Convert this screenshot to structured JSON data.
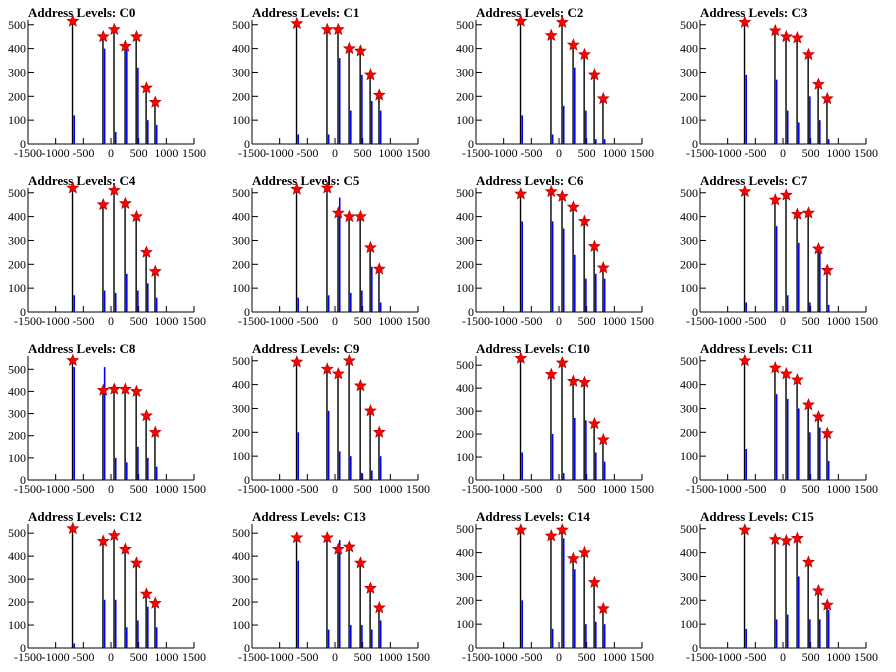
{
  "chart_data": [
    {
      "type": "bar",
      "title": "Address Levels: C0",
      "xlim": [
        -1500,
        1500
      ],
      "ylim": [
        0,
        520
      ],
      "xticks": [
        -1500,
        -1000,
        -500,
        0,
        500,
        1000,
        1500
      ],
      "yticks": [
        0,
        100,
        200,
        300,
        400,
        500
      ],
      "xticklabels": [
        "-1500",
        "-1000",
        "-500",
        "0",
        "500",
        "1000",
        "1500"
      ],
      "yticklabels": [
        "0",
        "100",
        "200",
        "300",
        "400",
        "500"
      ],
      "peaks_x": [
        -690,
        -140,
        60,
        260,
        460,
        640,
        800
      ],
      "peaks_y": [
        515,
        450,
        480,
        410,
        450,
        235,
        175
      ],
      "secondary_y": [
        120,
        400,
        50,
        410,
        320,
        100,
        80
      ]
    },
    {
      "type": "bar",
      "title": "Address Levels: C1",
      "xlim": [
        -1500,
        1500
      ],
      "ylim": [
        0,
        520
      ],
      "xticks": [
        -1500,
        -1000,
        -500,
        0,
        500,
        1000,
        1500
      ],
      "yticks": [
        0,
        100,
        200,
        300,
        400,
        500
      ],
      "xticklabels": [
        "-1500",
        "-1000",
        "-500",
        "0",
        "500",
        "1000",
        "1500"
      ],
      "yticklabels": [
        "0",
        "100",
        "200",
        "300",
        "400",
        "500"
      ],
      "peaks_x": [
        -690,
        -140,
        60,
        260,
        460,
        640,
        800
      ],
      "peaks_y": [
        505,
        480,
        480,
        400,
        390,
        290,
        205
      ],
      "secondary_y": [
        40,
        40,
        360,
        140,
        290,
        180,
        140
      ]
    },
    {
      "type": "bar",
      "title": "Address Levels: C2",
      "xlim": [
        -1500,
        1500
      ],
      "ylim": [
        0,
        520
      ],
      "xticks": [
        -1500,
        -1000,
        -500,
        0,
        500,
        1000,
        1500
      ],
      "yticks": [
        0,
        100,
        200,
        300,
        400,
        500
      ],
      "xticklabels": [
        "-1500",
        "-1000",
        "-500",
        "0",
        "500",
        "1000",
        "1500"
      ],
      "yticklabels": [
        "0",
        "100",
        "200",
        "300",
        "400",
        "500"
      ],
      "peaks_x": [
        -690,
        -140,
        60,
        260,
        460,
        640,
        800
      ],
      "peaks_y": [
        515,
        455,
        510,
        415,
        375,
        290,
        190
      ],
      "secondary_y": [
        120,
        40,
        160,
        320,
        140,
        20,
        20
      ]
    },
    {
      "type": "bar",
      "title": "Address Levels: C3",
      "xlim": [
        -1500,
        1500
      ],
      "ylim": [
        0,
        520
      ],
      "xticks": [
        -1500,
        -1000,
        -500,
        0,
        500,
        1000,
        1500
      ],
      "yticks": [
        0,
        100,
        200,
        300,
        400,
        500
      ],
      "xticklabels": [
        "-1500",
        "-1000",
        "-500",
        "0",
        "500",
        "1000",
        "1500"
      ],
      "yticklabels": [
        "0",
        "100",
        "200",
        "300",
        "400",
        "500"
      ],
      "peaks_x": [
        -690,
        -140,
        60,
        260,
        460,
        640,
        800
      ],
      "peaks_y": [
        510,
        475,
        450,
        445,
        375,
        250,
        190
      ],
      "secondary_y": [
        290,
        270,
        140,
        90,
        200,
        100,
        20
      ]
    },
    {
      "type": "bar",
      "title": "Address Levels: C4",
      "xlim": [
        -1500,
        1500
      ],
      "ylim": [
        0,
        520
      ],
      "xticks": [
        -1500,
        -1000,
        -500,
        0,
        500,
        1000,
        1500
      ],
      "yticks": [
        0,
        100,
        200,
        300,
        400,
        500
      ],
      "xticklabels": [
        "-1500",
        "-1000",
        "-500",
        "0",
        "500",
        "1000",
        "1500"
      ],
      "yticklabels": [
        "0",
        "100",
        "200",
        "300",
        "400",
        "500"
      ],
      "peaks_x": [
        -690,
        -140,
        60,
        260,
        460,
        640,
        800
      ],
      "peaks_y": [
        520,
        450,
        510,
        455,
        400,
        250,
        170
      ],
      "secondary_y": [
        70,
        90,
        80,
        160,
        90,
        120,
        60
      ]
    },
    {
      "type": "bar",
      "title": "Address Levels: C5",
      "xlim": [
        -1500,
        1500
      ],
      "ylim": [
        0,
        520
      ],
      "xticks": [
        -1500,
        -1000,
        -500,
        0,
        500,
        1000,
        1500
      ],
      "yticks": [
        0,
        100,
        200,
        300,
        400,
        500
      ],
      "xticklabels": [
        "-1500",
        "-1000",
        "-500",
        "0",
        "500",
        "1000",
        "1500"
      ],
      "yticklabels": [
        "0",
        "100",
        "200",
        "300",
        "400",
        "500"
      ],
      "peaks_x": [
        -690,
        -140,
        60,
        260,
        460,
        640,
        800
      ],
      "peaks_y": [
        515,
        520,
        415,
        400,
        400,
        270,
        180
      ],
      "secondary_y": [
        60,
        70,
        480,
        80,
        90,
        190,
        40
      ]
    },
    {
      "type": "bar",
      "title": "Address Levels: C6",
      "xlim": [
        -1500,
        1500
      ],
      "ylim": [
        0,
        520
      ],
      "xticks": [
        -1500,
        -1000,
        -500,
        0,
        500,
        1000,
        1500
      ],
      "yticks": [
        0,
        100,
        200,
        300,
        400,
        500
      ],
      "xticklabels": [
        "-1500",
        "-1000",
        "-500",
        "0",
        "500",
        "1000",
        "1500"
      ],
      "yticklabels": [
        "0",
        "100",
        "200",
        "300",
        "400",
        "500"
      ],
      "peaks_x": [
        -690,
        -140,
        60,
        260,
        460,
        640,
        800
      ],
      "peaks_y": [
        495,
        505,
        485,
        440,
        380,
        275,
        185
      ],
      "secondary_y": [
        380,
        380,
        350,
        240,
        140,
        160,
        140
      ]
    },
    {
      "type": "bar",
      "title": "Address Levels: C7",
      "xlim": [
        -1500,
        1500
      ],
      "ylim": [
        0,
        520
      ],
      "xticks": [
        -1500,
        -1000,
        -500,
        0,
        500,
        1000,
        1500
      ],
      "yticks": [
        0,
        100,
        200,
        300,
        400,
        500
      ],
      "xticklabels": [
        "-1500",
        "-1000",
        "-500",
        "0",
        "500",
        "1000",
        "1500"
      ],
      "yticklabels": [
        "0",
        "100",
        "200",
        "300",
        "400",
        "500"
      ],
      "peaks_x": [
        -690,
        -140,
        60,
        260,
        460,
        640,
        800
      ],
      "peaks_y": [
        505,
        470,
        490,
        410,
        415,
        265,
        175
      ],
      "secondary_y": [
        40,
        360,
        70,
        290,
        40,
        250,
        30
      ]
    },
    {
      "type": "bar",
      "title": "Address Levels: C8",
      "xlim": [
        -1500,
        1500
      ],
      "ylim": [
        0,
        560
      ],
      "xticks": [
        -1500,
        -1000,
        -500,
        0,
        500,
        1000,
        1500
      ],
      "yticks": [
        0,
        100,
        200,
        300,
        400,
        500
      ],
      "xticklabels": [
        "-1500",
        "-1000",
        "-500",
        "0",
        "500",
        "1000",
        "1500"
      ],
      "yticklabels": [
        "0",
        "100",
        "200",
        "300",
        "400",
        "500"
      ],
      "peaks_x": [
        -690,
        -140,
        60,
        260,
        460,
        640,
        800
      ],
      "peaks_y": [
        540,
        405,
        410,
        410,
        400,
        290,
        215
      ],
      "secondary_y": [
        510,
        510,
        100,
        80,
        150,
        100,
        60
      ]
    },
    {
      "type": "bar",
      "title": "Address Levels: C9",
      "xlim": [
        -1500,
        1500
      ],
      "ylim": [
        0,
        520
      ],
      "xticks": [
        -1500,
        -1000,
        -500,
        0,
        500,
        1000,
        1500
      ],
      "yticks": [
        0,
        100,
        200,
        300,
        400,
        500
      ],
      "xticklabels": [
        "-1500",
        "-1000",
        "-500",
        "0",
        "500",
        "1000",
        "1500"
      ],
      "yticklabels": [
        "0",
        "100",
        "200",
        "300",
        "400",
        "500"
      ],
      "peaks_x": [
        -690,
        -140,
        60,
        260,
        460,
        640,
        800
      ],
      "peaks_y": [
        495,
        465,
        445,
        500,
        395,
        290,
        200
      ],
      "secondary_y": [
        200,
        290,
        120,
        100,
        30,
        40,
        100
      ]
    },
    {
      "type": "bar",
      "title": "Address Levels: C10",
      "xlim": [
        -1500,
        1500
      ],
      "ylim": [
        0,
        540
      ],
      "xticks": [
        -1500,
        -1000,
        -500,
        0,
        500,
        1000,
        1500
      ],
      "yticks": [
        0,
        100,
        200,
        300,
        400,
        500
      ],
      "xticklabels": [
        "-1500",
        "-1000",
        "-500",
        "0",
        "500",
        "1000",
        "1500"
      ],
      "yticklabels": [
        "0",
        "100",
        "200",
        "300",
        "400",
        "500"
      ],
      "peaks_x": [
        -690,
        -140,
        60,
        260,
        460,
        640,
        800
      ],
      "peaks_y": [
        530,
        460,
        510,
        430,
        425,
        245,
        175
      ],
      "secondary_y": [
        120,
        200,
        30,
        270,
        260,
        120,
        80
      ]
    },
    {
      "type": "bar",
      "title": "Address Levels: C11",
      "xlim": [
        -1500,
        1500
      ],
      "ylim": [
        0,
        520
      ],
      "xticks": [
        -1500,
        -1000,
        -500,
        0,
        500,
        1000,
        1500
      ],
      "yticks": [
        0,
        100,
        200,
        300,
        400,
        500
      ],
      "xticklabels": [
        "-1500",
        "-1000",
        "-500",
        "0",
        "500",
        "1000",
        "1500"
      ],
      "yticklabels": [
        "0",
        "100",
        "200",
        "300",
        "400",
        "500"
      ],
      "peaks_x": [
        -690,
        -140,
        60,
        260,
        460,
        640,
        800
      ],
      "peaks_y": [
        500,
        470,
        445,
        420,
        315,
        265,
        195
      ],
      "secondary_y": [
        130,
        360,
        340,
        300,
        200,
        220,
        80
      ]
    },
    {
      "type": "bar",
      "title": "Address Levels: C12",
      "xlim": [
        -1500,
        1500
      ],
      "ylim": [
        0,
        540
      ],
      "xticks": [
        -1500,
        -1000,
        -500,
        0,
        500,
        1000,
        1500
      ],
      "yticks": [
        0,
        100,
        200,
        300,
        400,
        500
      ],
      "xticklabels": [
        "-1500",
        "-1000",
        "-500",
        "0",
        "500",
        "1000",
        "1500"
      ],
      "yticklabels": [
        "0",
        "100",
        "200",
        "300",
        "400",
        "500"
      ],
      "peaks_x": [
        -690,
        -140,
        60,
        260,
        460,
        640,
        800
      ],
      "peaks_y": [
        520,
        465,
        490,
        430,
        370,
        235,
        195
      ],
      "secondary_y": [
        20,
        210,
        210,
        90,
        120,
        180,
        90
      ]
    },
    {
      "type": "bar",
      "title": "Address Levels: C13",
      "xlim": [
        -1500,
        1500
      ],
      "ylim": [
        0,
        540
      ],
      "xticks": [
        -1500,
        -1000,
        -500,
        0,
        500,
        1000,
        1500
      ],
      "yticks": [
        0,
        100,
        200,
        300,
        400,
        500
      ],
      "xticklabels": [
        "-1500",
        "-1000",
        "-500",
        "0",
        "500",
        "1000",
        "1500"
      ],
      "yticklabels": [
        "0",
        "100",
        "200",
        "300",
        "400",
        "500"
      ],
      "peaks_x": [
        -690,
        -140,
        60,
        260,
        460,
        640,
        800
      ],
      "peaks_y": [
        480,
        480,
        430,
        440,
        370,
        260,
        175
      ],
      "secondary_y": [
        380,
        80,
        470,
        100,
        100,
        80,
        120
      ]
    },
    {
      "type": "bar",
      "title": "Address Levels: C14",
      "xlim": [
        -1500,
        1500
      ],
      "ylim": [
        0,
        520
      ],
      "xticks": [
        -1500,
        -1000,
        -500,
        0,
        500,
        1000,
        1500
      ],
      "yticks": [
        0,
        100,
        200,
        300,
        400,
        500
      ],
      "xticklabels": [
        "-1500",
        "-1000",
        "-500",
        "0",
        "500",
        "1000",
        "1500"
      ],
      "yticklabels": [
        "0",
        "100",
        "200",
        "300",
        "400",
        "500"
      ],
      "peaks_x": [
        -690,
        -140,
        60,
        260,
        460,
        640,
        800
      ],
      "peaks_y": [
        495,
        470,
        495,
        375,
        400,
        275,
        165
      ],
      "secondary_y": [
        200,
        80,
        460,
        330,
        100,
        110,
        100
      ]
    },
    {
      "type": "bar",
      "title": "Address Levels: C15",
      "xlim": [
        -1500,
        1500
      ],
      "ylim": [
        0,
        520
      ],
      "xticks": [
        -1500,
        -1000,
        -500,
        0,
        500,
        1000,
        1500
      ],
      "yticks": [
        0,
        100,
        200,
        300,
        400,
        500
      ],
      "xticklabels": [
        "-1500",
        "-1000",
        "-500",
        "0",
        "500",
        "1000",
        "1500"
      ],
      "yticklabels": [
        "0",
        "100",
        "200",
        "300",
        "400",
        "500"
      ],
      "peaks_x": [
        -690,
        -140,
        60,
        260,
        460,
        640,
        800
      ],
      "peaks_y": [
        495,
        455,
        450,
        460,
        360,
        240,
        180
      ],
      "secondary_y": [
        80,
        120,
        140,
        300,
        120,
        120,
        160
      ]
    }
  ],
  "colors": {
    "bar": "#0000ff",
    "bar_dark": "#000000",
    "marker": "#ff0000",
    "axis": "#000000"
  }
}
